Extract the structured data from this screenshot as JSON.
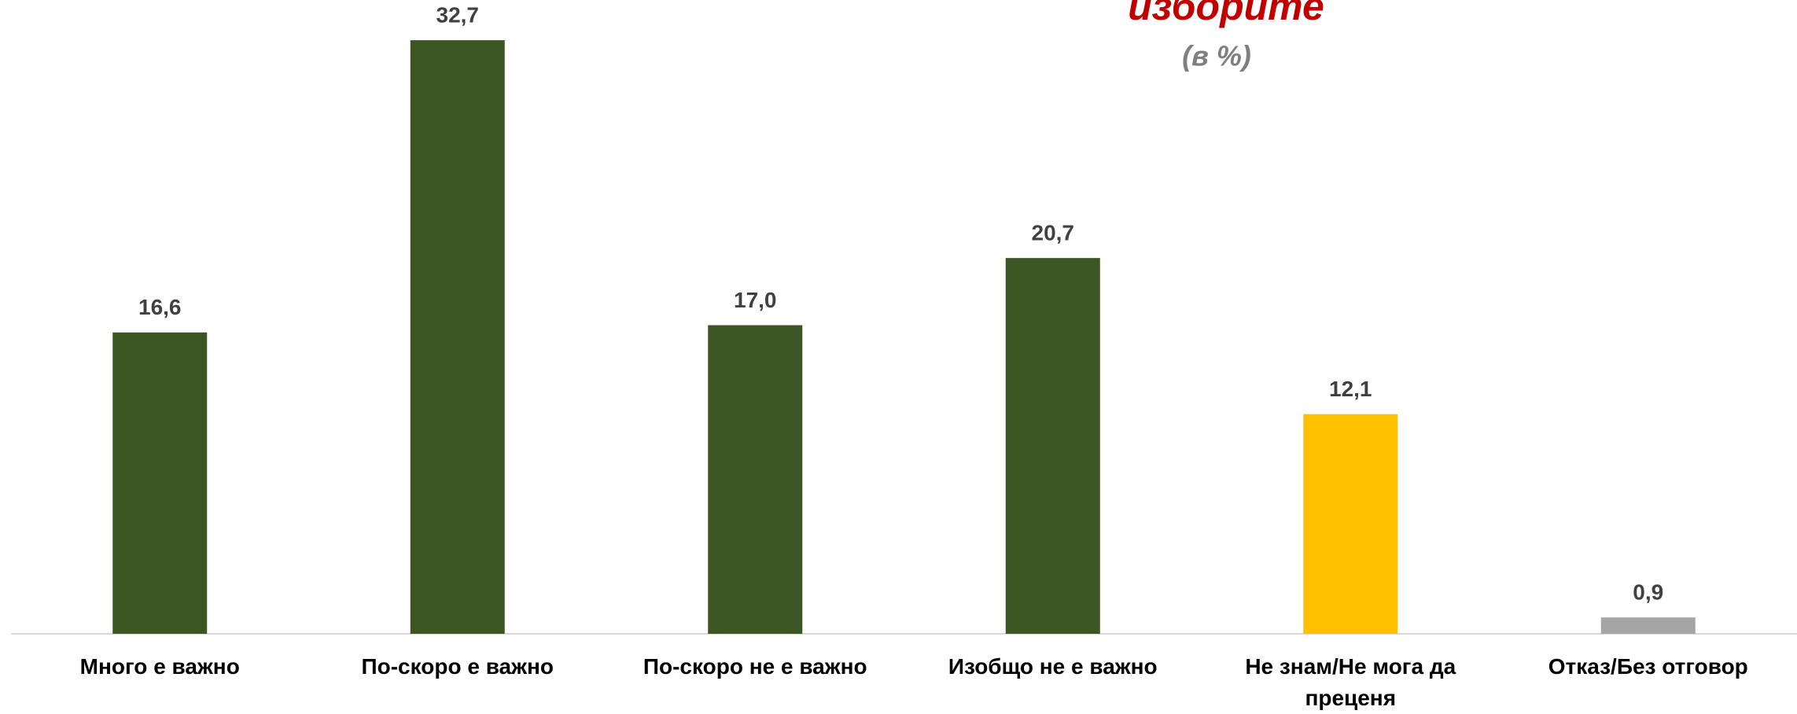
{
  "chart_data": {
    "type": "bar",
    "title": "изборите",
    "subtitle": "(в %)",
    "categories": [
      "Много е важно",
      "По-скоро е важно",
      "По-скоро не е важно",
      "Изобщо не е важно",
      "Не знам/Не мога да преценя",
      "Отказ/Без отговор"
    ],
    "values": [
      16.6,
      32.7,
      17.0,
      20.7,
      12.1,
      0.9
    ],
    "value_labels": [
      "16,6",
      "32,7",
      "17,0",
      "20,7",
      "12,1",
      "0,9"
    ],
    "colors": [
      "#3b5623",
      "#3b5623",
      "#3b5623",
      "#3b5623",
      "#ffc000",
      "#a5a5a5"
    ],
    "ylim": [
      0,
      35
    ]
  }
}
